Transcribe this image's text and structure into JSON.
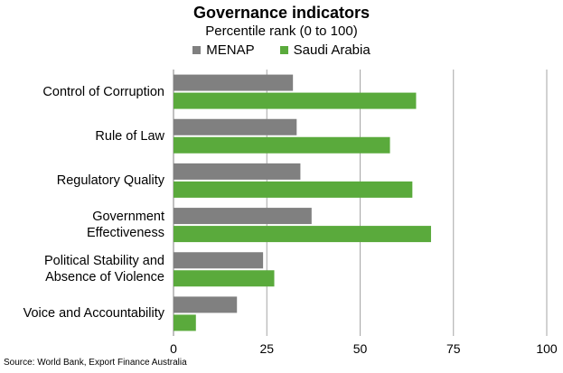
{
  "chart_data": {
    "type": "bar",
    "orientation": "horizontal",
    "title": "Governance indicators",
    "subtitle": "Percentile rank (0 to 100)",
    "categories": [
      [
        "Control of Corruption"
      ],
      [
        "Rule of Law"
      ],
      [
        "Regulatory Quality"
      ],
      [
        "Government",
        "Effectiveness"
      ],
      [
        "Political Stability and",
        "Absence of Violence"
      ],
      [
        "Voice and Accountability"
      ]
    ],
    "series": [
      {
        "name": "MENAP",
        "color": "#808080",
        "values": [
          32,
          33,
          34,
          37,
          24,
          17
        ]
      },
      {
        "name": "Saudi Arabia",
        "color": "#5aaa3c",
        "values": [
          65,
          58,
          64,
          69,
          27,
          6
        ]
      }
    ],
    "xlim": [
      0,
      100
    ],
    "xticks": [
      "0",
      "25",
      "50",
      "75",
      "100"
    ],
    "grid": true,
    "legend_position": "top"
  },
  "source": "Source: World Bank, Export Finance Australia"
}
